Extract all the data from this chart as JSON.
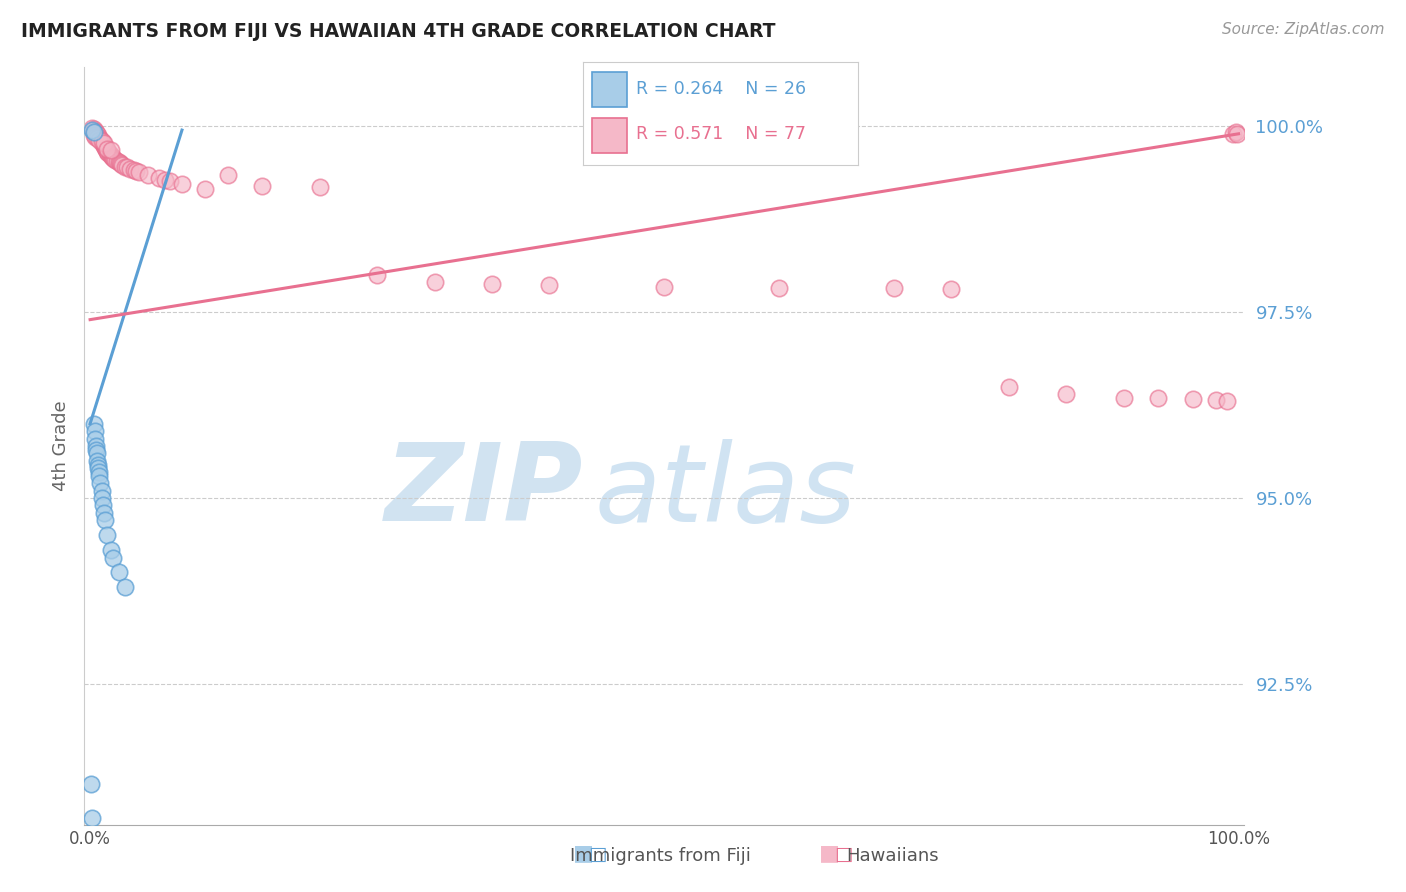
{
  "title": "IMMIGRANTS FROM FIJI VS HAWAIIAN 4TH GRADE CORRELATION CHART",
  "source": "Source: ZipAtlas.com",
  "ylabel": "4th Grade",
  "y_ticks": [
    0.925,
    0.95,
    0.975,
    1.0
  ],
  "y_tick_labels": [
    "92.5%",
    "95.0%",
    "97.5%",
    "100.0%"
  ],
  "xlim": [
    -0.005,
    1.005
  ],
  "ylim": [
    0.906,
    1.008
  ],
  "legend_blue_r": "R = 0.264",
  "legend_blue_n": "N = 26",
  "legend_pink_r": "R = 0.571",
  "legend_pink_n": "N = 77",
  "blue_fill": "#a8cde8",
  "blue_edge": "#5b9fd4",
  "pink_fill": "#f5b8c8",
  "pink_edge": "#e87090",
  "blue_line_color": "#5b9fd4",
  "pink_line_color": "#e87090",
  "watermark_zip_color": "#cce0f0",
  "watermark_atlas_color": "#b8d5ec",
  "blue_x": [
    0.001,
    0.002,
    0.002,
    0.003,
    0.003,
    0.004,
    0.004,
    0.005,
    0.005,
    0.006,
    0.006,
    0.007,
    0.007,
    0.008,
    0.008,
    0.009,
    0.01,
    0.01,
    0.011,
    0.012,
    0.013,
    0.015,
    0.018,
    0.02,
    0.025,
    0.03
  ],
  "blue_y": [
    0.9115,
    0.907,
    0.9995,
    0.9993,
    0.96,
    0.959,
    0.958,
    0.957,
    0.9565,
    0.956,
    0.955,
    0.9545,
    0.954,
    0.9535,
    0.953,
    0.952,
    0.951,
    0.95,
    0.949,
    0.948,
    0.947,
    0.945,
    0.943,
    0.942,
    0.94,
    0.938
  ],
  "pink_x": [
    0.002,
    0.003,
    0.004,
    0.005,
    0.006,
    0.007,
    0.007,
    0.008,
    0.008,
    0.009,
    0.01,
    0.01,
    0.011,
    0.012,
    0.012,
    0.013,
    0.013,
    0.014,
    0.014,
    0.015,
    0.015,
    0.016,
    0.016,
    0.017,
    0.018,
    0.018,
    0.019,
    0.02,
    0.02,
    0.021,
    0.022,
    0.023,
    0.025,
    0.026,
    0.027,
    0.028,
    0.03,
    0.032,
    0.035,
    0.038,
    0.04,
    0.043,
    0.05,
    0.06,
    0.065,
    0.07,
    0.08,
    0.1,
    0.12,
    0.15,
    0.2,
    0.25,
    0.3,
    0.35,
    0.4,
    0.5,
    0.6,
    0.7,
    0.75,
    0.8,
    0.85,
    0.9,
    0.93,
    0.96,
    0.98,
    0.99,
    0.995,
    0.998,
    0.999,
    0.003,
    0.004,
    0.006,
    0.008,
    0.01,
    0.012,
    0.015,
    0.018
  ],
  "pink_y": [
    0.9998,
    0.9996,
    0.9994,
    0.9992,
    0.999,
    0.9988,
    0.9986,
    0.9985,
    0.9984,
    0.9982,
    0.998,
    0.9978,
    0.9977,
    0.9975,
    0.9974,
    0.9972,
    0.9971,
    0.997,
    0.9969,
    0.9967,
    0.9966,
    0.9965,
    0.9964,
    0.9963,
    0.9962,
    0.996,
    0.9959,
    0.9958,
    0.9957,
    0.9956,
    0.9955,
    0.9954,
    0.9952,
    0.9951,
    0.995,
    0.9948,
    0.9946,
    0.9945,
    0.9943,
    0.9941,
    0.994,
    0.9938,
    0.9934,
    0.993,
    0.9928,
    0.9926,
    0.9922,
    0.9916,
    0.9935,
    0.992,
    0.9918,
    0.98,
    0.979,
    0.9788,
    0.9786,
    0.9784,
    0.9783,
    0.9782,
    0.9781,
    0.965,
    0.964,
    0.9635,
    0.9634,
    0.9633,
    0.9632,
    0.9631,
    0.999,
    0.9992,
    0.999,
    0.9988,
    0.9986,
    0.9984,
    0.9982,
    0.998,
    0.9978,
    0.997,
    0.9968
  ],
  "blue_trend_x": [
    0.0,
    0.08
  ],
  "blue_trend_y_start": 0.96,
  "blue_trend_y_end": 0.9995,
  "pink_trend_x": [
    0.0,
    1.0
  ],
  "pink_trend_y_start": 0.974,
  "pink_trend_y_end": 0.999
}
